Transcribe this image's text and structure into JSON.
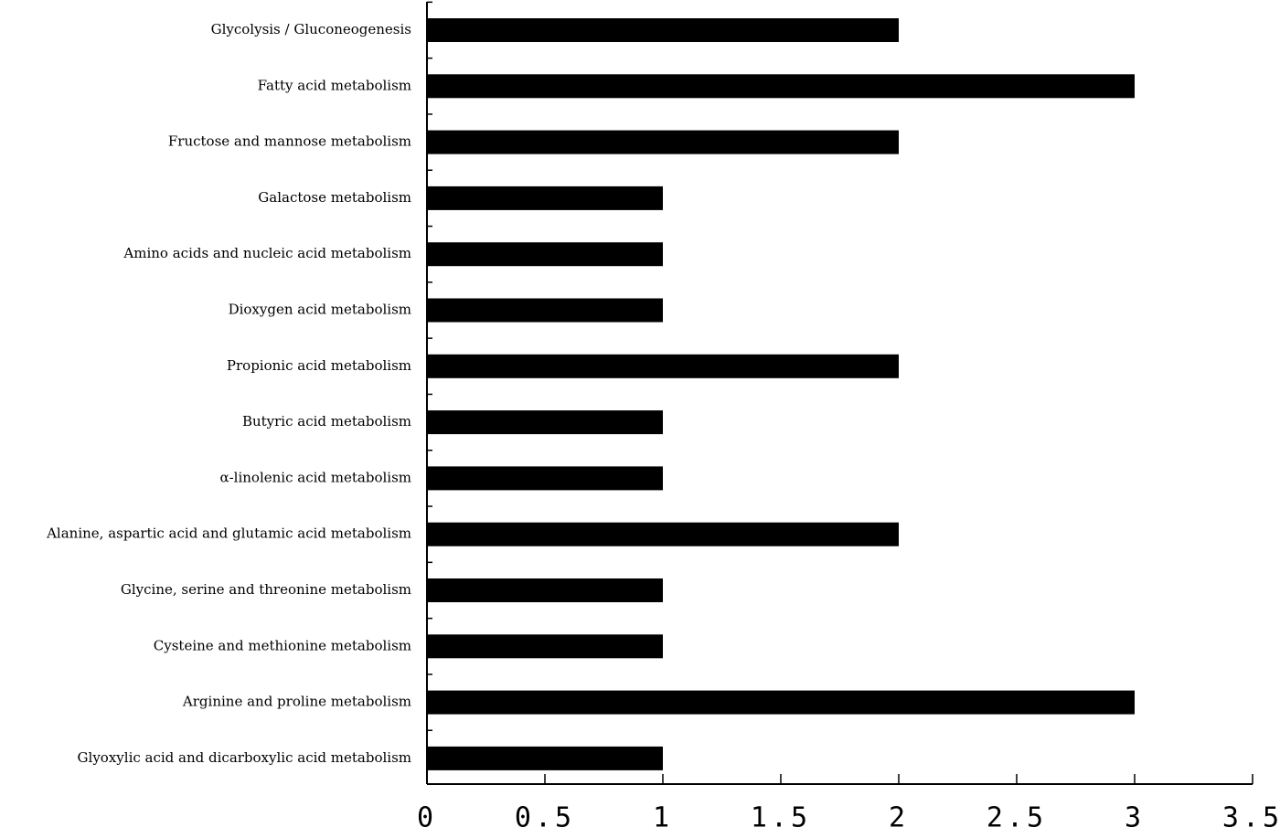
{
  "chart_data": {
    "type": "bar",
    "orientation": "horizontal",
    "categories": [
      "Glycolysis / Gluconeogenesis",
      "Fatty acid metabolism",
      "Fructose and mannose metabolism",
      "Galactose metabolism",
      "Amino acids and nucleic acid metabolism",
      "Dioxygen acid metabolism",
      "Propionic acid metabolism",
      "Butyric acid metabolism",
      "α-linolenic acid metabolism",
      "Alanine, aspartic acid and glutamic acid metabolism",
      "Glycine, serine and threonine metabolism",
      "Cysteine and methionine metabolism",
      "Arginine and proline metabolism",
      "Glyoxylic acid and dicarboxylic acid metabolism"
    ],
    "values": [
      2,
      3,
      2,
      1,
      1,
      1,
      2,
      1,
      1,
      2,
      1,
      1,
      3,
      1
    ],
    "xlim": [
      0,
      3.5
    ],
    "xticks": [
      "0",
      "0.5",
      "1",
      "1.5",
      "2",
      "2.5",
      "3",
      "3.5"
    ],
    "bar_color": "#000000",
    "axis_color": "#000000",
    "title": "",
    "xlabel": "",
    "ylabel": "",
    "grid": false,
    "legend": "none"
  }
}
